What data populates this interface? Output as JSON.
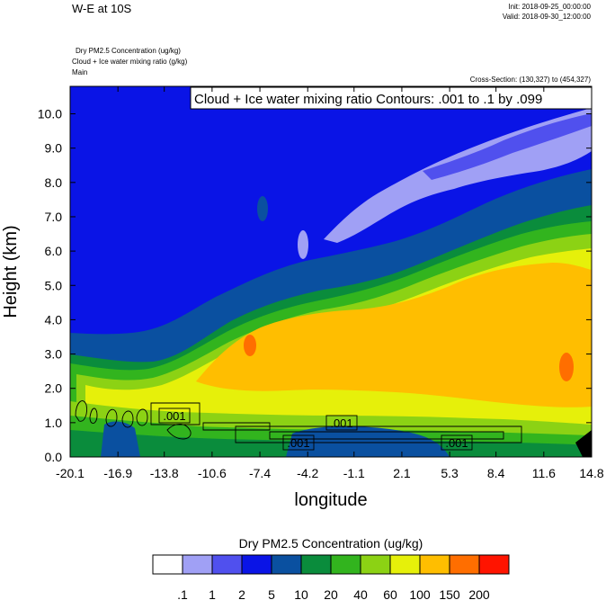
{
  "header": {
    "title": "W-E at 10S",
    "init": "Init: 2018-09-25_00:00:00",
    "valid": "Valid: 2018-09-30_12:00:00",
    "field1": "Dry PM2.5 Concentration   (ug/kg)",
    "field2": "Cloud + Ice water mixing ratio   (g/kg)",
    "field3": "Main",
    "cross_section": "Cross-Section: (130,327) to (454,327)"
  },
  "chart_data": {
    "type": "heatmap",
    "contour_title": "Cloud + Ice water mixing ratio Contours: .001 to .1 by .099",
    "xlabel": "longitude",
    "ylabel": "Height (km)",
    "xlim": [
      -20.1,
      14.8
    ],
    "ylim": [
      0,
      10.8
    ],
    "x_ticks": [
      "-20.1",
      "-16.9",
      "-13.8",
      "-10.6",
      "-7.4",
      "-4.2",
      "-1.1",
      "2.1",
      "5.3",
      "8.4",
      "11.6",
      "14.8"
    ],
    "y_ticks": [
      "0.0",
      "1.0",
      "2.0",
      "3.0",
      "4.0",
      "5.0",
      "6.0",
      "7.0",
      "8.0",
      "9.0",
      "10.0"
    ],
    "contour_labels": [
      ".001",
      ".001",
      ".001",
      ".001"
    ],
    "colorbar": {
      "title": "Dry PM2.5 Concentration  (ug/kg)",
      "levels": [
        ".1",
        "1",
        "2",
        "5",
        "10",
        "20",
        "40",
        "60",
        "100",
        "150",
        "200"
      ],
      "colors": [
        "#ffffff",
        "#a0a0f5",
        "#5050ee",
        "#0a14e6",
        "#0a50a0",
        "#0a8c3c",
        "#32b41e",
        "#8cd214",
        "#e6f00a",
        "#ffbe00",
        "#ff6e00",
        "#ff1400"
      ]
    }
  }
}
